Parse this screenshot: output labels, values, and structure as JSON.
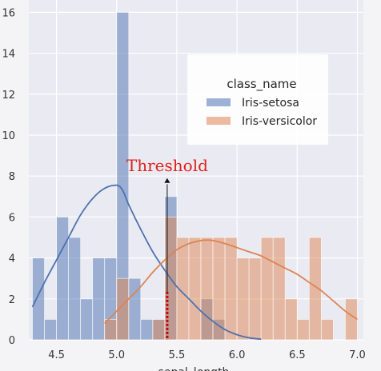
{
  "chart_data": {
    "type": "bar",
    "xlabel": "sepal_length",
    "ylabel": "",
    "xlim": [
      4.27,
      7.05
    ],
    "ylim": [
      0,
      16.6
    ],
    "grid": true,
    "x_ticks": [
      4.5,
      5.0,
      5.5,
      6.0,
      6.5,
      7.0
    ],
    "y_ticks": [
      0,
      2,
      4,
      6,
      8,
      10,
      12,
      14,
      16
    ],
    "bin_width": 0.1,
    "legend": {
      "title": "class_name",
      "placement": "upper right",
      "entries": [
        "Iris-setosa",
        "Iris-versicolor"
      ]
    },
    "series": [
      {
        "name": "Iris-setosa",
        "color": "#4c72b0",
        "bin_left_edges": [
          4.3,
          4.4,
          4.5,
          4.6,
          4.7,
          4.8,
          4.9,
          5.0,
          5.1,
          5.2,
          5.3,
          5.4,
          5.5,
          5.6,
          5.7,
          5.8
        ],
        "counts": [
          4,
          1,
          6,
          5,
          2,
          4,
          4,
          16,
          3,
          1,
          1,
          7,
          0,
          0,
          2,
          1
        ],
        "kde_x": [
          4.3,
          4.4,
          4.5,
          4.6,
          4.7,
          4.8,
          4.9,
          5.0,
          5.05,
          5.1,
          5.2,
          5.3,
          5.4,
          5.5,
          5.6,
          5.7,
          5.8,
          5.9,
          6.0,
          6.1,
          6.2
        ],
        "kde_y": [
          1.6,
          2.8,
          3.9,
          5.0,
          6.1,
          6.9,
          7.4,
          7.55,
          7.3,
          6.6,
          5.4,
          4.3,
          3.4,
          2.6,
          2.0,
          1.4,
          0.9,
          0.5,
          0.25,
          0.1,
          0.03
        ]
      },
      {
        "name": "Iris-versicolor",
        "color": "#dd8452",
        "bin_left_edges": [
          4.9,
          5.0,
          5.1,
          5.2,
          5.3,
          5.4,
          5.5,
          5.6,
          5.7,
          5.8,
          5.9,
          6.0,
          6.1,
          6.2,
          6.3,
          6.4,
          6.5,
          6.6,
          6.7,
          6.8,
          6.9
        ],
        "counts": [
          1,
          3,
          0,
          0,
          1,
          6,
          5,
          5,
          5,
          5,
          5,
          4,
          4,
          5,
          5,
          2,
          1,
          5,
          1,
          0,
          2
        ],
        "kde_x": [
          4.9,
          5.0,
          5.1,
          5.2,
          5.3,
          5.4,
          5.5,
          5.6,
          5.7,
          5.75,
          5.8,
          5.9,
          6.0,
          6.1,
          6.2,
          6.3,
          6.4,
          6.5,
          6.6,
          6.7,
          6.8,
          6.9,
          7.0
        ],
        "kde_y": [
          0.8,
          1.4,
          2.0,
          2.6,
          3.3,
          3.9,
          4.4,
          4.7,
          4.85,
          4.87,
          4.85,
          4.7,
          4.5,
          4.3,
          4.1,
          3.8,
          3.5,
          3.2,
          2.8,
          2.4,
          1.9,
          1.4,
          1.0
        ]
      }
    ],
    "annotations": [
      {
        "text": "Threshold",
        "x": 5.42,
        "color": "#e0201b",
        "line_color": "#cc0000",
        "arrow_color": "#111111"
      }
    ]
  }
}
